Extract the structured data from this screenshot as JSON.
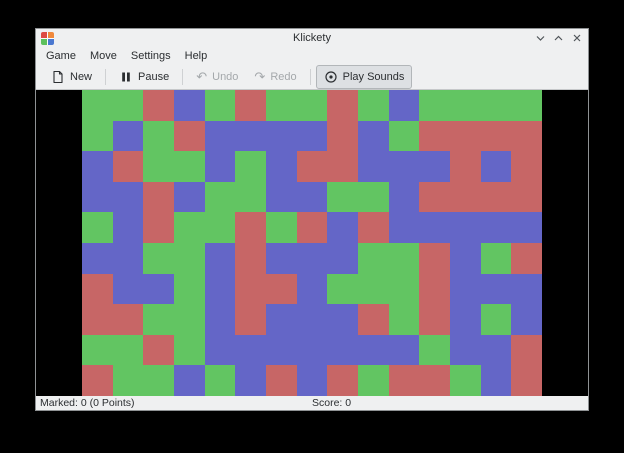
{
  "window": {
    "title": "Klickety",
    "controls": {
      "minimize": "chevron-down",
      "maximize": "chevron-up",
      "close": "x"
    },
    "chrome_color": "#eff0f1"
  },
  "app_icon_colors": {
    "top_left": "#dd4b42",
    "top_right": "#f0883b",
    "bottom_left": "#5cc05c",
    "bottom_right": "#4a78d0"
  },
  "menu": {
    "items": [
      "Game",
      "Move",
      "Settings",
      "Help"
    ]
  },
  "toolbar": {
    "buttons": [
      {
        "label": "New",
        "icon": "new-document-icon",
        "state": "enabled"
      },
      {
        "label": "Pause",
        "icon": "pause-icon",
        "state": "enabled"
      },
      {
        "label": "Undo",
        "icon": "undo-icon",
        "state": "disabled"
      },
      {
        "label": "Redo",
        "icon": "redo-icon",
        "state": "disabled"
      },
      {
        "label": "Play Sounds",
        "icon": "play-sounds-icon",
        "state": "toggled-on"
      }
    ]
  },
  "statusbar": {
    "marked": "Marked: 0 (0 Points)",
    "score": "Score: 0"
  },
  "board": {
    "cols": 15,
    "rows": 10,
    "colors": {
      "G": "#62c562",
      "R": "#c76666",
      "B": "#6466c7"
    },
    "background": "#000000",
    "grid": [
      "GGRBGRGGRGBGGGG",
      "GBGRBBBBRBGRRRR",
      "BRGGBGBRRBBBRBR",
      "BBRBGGBBGGBRRRR",
      "GBRGGRGRBRBBBBB",
      "BBGGBRBBBGGRBGR",
      "RBBGBRRBGGGRBBB",
      "RRGGBRBBBRGRBGB",
      "GGRGBBBBBBBGBBR",
      "RGGBGBRBRGRRGBR"
    ]
  }
}
